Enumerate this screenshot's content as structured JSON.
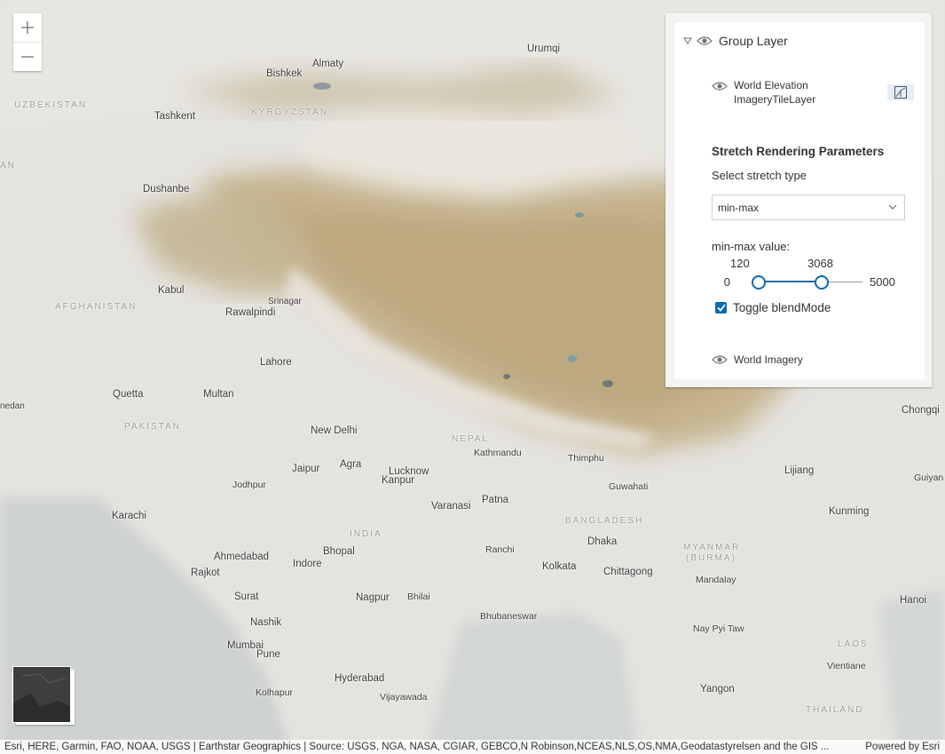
{
  "zoom": {
    "in_label": "+",
    "out_label": "—"
  },
  "layer_list": {
    "group_title": "Group Layer",
    "elevation_title_line1": "World Elevation",
    "elevation_title_line2": "ImageryTileLayer",
    "params_title": "Stretch Rendering Parameters",
    "select_label": "Select stretch type",
    "select_value": "min-max",
    "minmax_label": "min-max value:",
    "slider": {
      "min": 0,
      "max": 5000,
      "low": 120,
      "high": 3068,
      "min_label": "0",
      "max_label": "5000",
      "low_label": "120",
      "high_label": "3068"
    },
    "blend_label": "Toggle blendMode",
    "blend_checked": true,
    "imagery_title": "World Imagery"
  },
  "attribution": {
    "source": "Esri, HERE, Garmin, FAO, NOAA, USGS | Earthstar Geographics | Source: USGS, NGA, NASA, CGIAR, GEBCO,N Robinson,NCEAS,NLS,OS,NMA,Geodatastyrelsen and the GIS ...",
    "powered": "Powered by Esri"
  },
  "map_labels": {
    "countries": {
      "uzbekistan": "UZBEKISTAN",
      "kyrgyzstan": "KYRGYZSTAN",
      "afghanistan": "AFGHANISTAN",
      "pakistan": "PAKISTAN",
      "india": "INDIA",
      "nepal": "NEPAL",
      "bangladesh": "BANGLADESH",
      "myanmar1": "MYANMAR",
      "myanmar2": "(BURMA)",
      "laos": "LAOS",
      "thailand": "THAILAND",
      "kaz": "AN"
    },
    "cities": {
      "urumqi": "Urumqi",
      "almaty": "Almaty",
      "bishkek": "Bishkek",
      "tashkent": "Tashkent",
      "dushanbe": "Dushanbe",
      "kabul": "Kabul",
      "srinagar": "Srinagar",
      "rawalpindi": "Rawalpindi",
      "lahore": "Lahore",
      "quetta": "Quetta",
      "multan": "Multan",
      "newdelhi": "New Delhi",
      "jaipur": "Jaipur",
      "agra": "Agra",
      "lucknow": "Lucknow",
      "kanpur": "Kanpur",
      "kathmandu": "Kathmandu",
      "thimphu": "Thimphu",
      "guwahati": "Guwahati",
      "lijiang": "Lijiang",
      "chongqing": "Chongqi",
      "guiyang": "Guiyan",
      "kunming": "Kunming",
      "jodhpur": "Jodhpur",
      "karachi": "Karachi",
      "varanasi": "Varanasi",
      "patna": "Patna",
      "ahmedabad": "Ahmedabad",
      "rajkot": "Rajkot",
      "indore": "Indore",
      "bhopal": "Bhopal",
      "ranchi": "Ranchi",
      "dhaka": "Dhaka",
      "kolkata": "Kolkata",
      "chittagong": "Chittagong",
      "mandalay": "Mandalay",
      "surat": "Surat",
      "nagpur": "Nagpur",
      "bhilai": "Bhilai",
      "hanoi": "Hanoi",
      "nashik": "Nashik",
      "bhubaneswar": "Bhubaneswar",
      "naypyitaw": "Nay Pyi Taw",
      "mumbai": "Mumbai",
      "pune": "Pune",
      "vientiane": "Vientiane",
      "hyderabad": "Hyderabad",
      "kolhapur": "Kolhapur",
      "vijayawada": "Vijayawada",
      "yangon": "Yangon",
      "medan": "nedan"
    }
  }
}
